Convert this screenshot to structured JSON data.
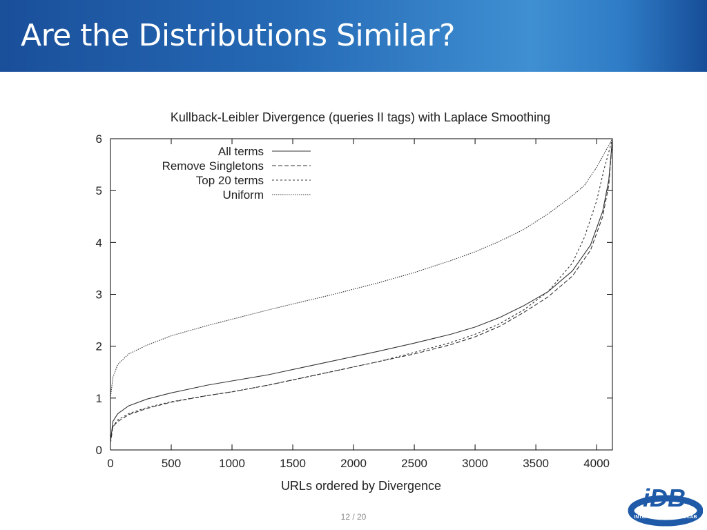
{
  "slide": {
    "title": "Are the Distributions Similar?",
    "page_number": "12 / 20",
    "logo_text": "iDB",
    "logo_ring_text": "INTERNET DATABASE LAB",
    "banner_color": "#2569b5"
  },
  "chart_data": {
    "type": "line",
    "title": "Kullback-Leibler Divergence (queries II tags) with Laplace Smoothing",
    "xlabel": "URLs ordered by Divergence",
    "ylabel": "",
    "xlim": [
      0,
      4130
    ],
    "ylim": [
      0,
      6
    ],
    "xticks": [
      0,
      500,
      1000,
      1500,
      2000,
      2500,
      3000,
      3500,
      4000
    ],
    "yticks": [
      0,
      1,
      2,
      3,
      4,
      5,
      6
    ],
    "grid": false,
    "legend": "top-left",
    "series": [
      {
        "name": "All terms",
        "style": "solid",
        "x": [
          0,
          20,
          60,
          150,
          300,
          500,
          800,
          1000,
          1300,
          1600,
          1800,
          2000,
          2200,
          2500,
          2800,
          3000,
          3200,
          3400,
          3600,
          3800,
          3950,
          4050,
          4100,
          4130
        ],
        "y": [
          0.15,
          0.55,
          0.7,
          0.85,
          0.98,
          1.1,
          1.25,
          1.33,
          1.45,
          1.6,
          1.7,
          1.8,
          1.9,
          2.06,
          2.23,
          2.37,
          2.55,
          2.78,
          3.05,
          3.45,
          3.95,
          4.6,
          5.2,
          6.0
        ]
      },
      {
        "name": "Remove Singletons",
        "style": "dashed",
        "x": [
          0,
          20,
          60,
          150,
          300,
          500,
          800,
          1000,
          1300,
          1600,
          1800,
          2000,
          2200,
          2500,
          2800,
          3000,
          3200,
          3400,
          3600,
          3800,
          3950,
          4050,
          4100,
          4130
        ],
        "y": [
          0.12,
          0.45,
          0.55,
          0.68,
          0.8,
          0.92,
          1.05,
          1.12,
          1.25,
          1.4,
          1.5,
          1.6,
          1.7,
          1.85,
          2.03,
          2.18,
          2.38,
          2.65,
          2.95,
          3.35,
          3.85,
          4.5,
          5.1,
          6.0
        ]
      },
      {
        "name": "Top 20 terms",
        "style": "dotted",
        "x": [
          0,
          20,
          60,
          150,
          300,
          500,
          800,
          1000,
          1300,
          1600,
          1800,
          2000,
          2200,
          2500,
          2800,
          3000,
          3200,
          3400,
          3600,
          3800,
          3900,
          4000,
          4060,
          4130
        ],
        "y": [
          0.2,
          0.45,
          0.58,
          0.7,
          0.82,
          0.93,
          1.05,
          1.12,
          1.25,
          1.4,
          1.5,
          1.6,
          1.7,
          1.88,
          2.07,
          2.23,
          2.43,
          2.7,
          3.05,
          3.6,
          4.1,
          4.8,
          5.4,
          6.0
        ]
      },
      {
        "name": "Uniform",
        "style": "dotted-fine",
        "x": [
          0,
          20,
          60,
          150,
          300,
          500,
          800,
          1000,
          1300,
          1600,
          1800,
          2000,
          2200,
          2500,
          2800,
          3000,
          3200,
          3400,
          3600,
          3800,
          3900,
          4000,
          4060,
          4130
        ],
        "y": [
          1.0,
          1.4,
          1.65,
          1.85,
          2.02,
          2.2,
          2.4,
          2.52,
          2.7,
          2.87,
          2.98,
          3.1,
          3.22,
          3.42,
          3.65,
          3.82,
          4.02,
          4.25,
          4.55,
          4.9,
          5.1,
          5.45,
          5.7,
          6.0
        ]
      }
    ]
  }
}
